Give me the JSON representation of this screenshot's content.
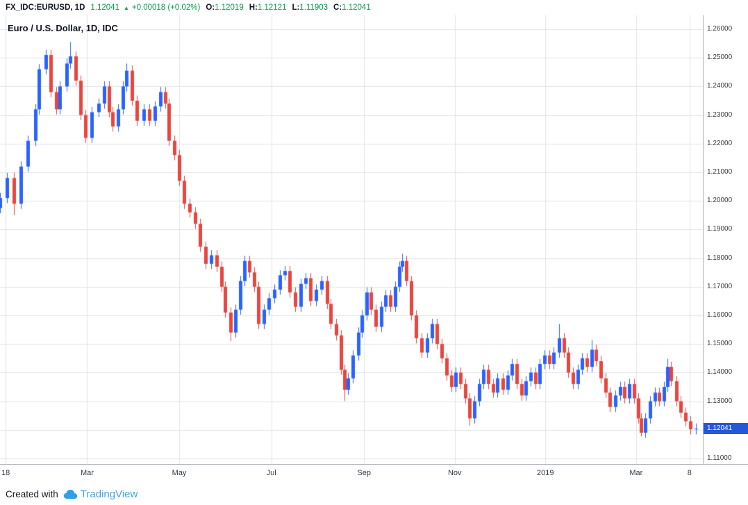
{
  "header": {
    "symbol": "FX_IDC:EURUSD, 1D",
    "last_price": "1.12041",
    "arrow": "▲",
    "change": "+0.00018 (+0.02%)",
    "ohlc": [
      {
        "label": "O:",
        "value": "1.12019"
      },
      {
        "label": "H:",
        "value": "1.12121"
      },
      {
        "label": "L:",
        "value": "1.11903"
      },
      {
        "label": "C:",
        "value": "1.12041"
      }
    ]
  },
  "chart": {
    "last_price_label": "1.12041"
  },
  "footer": {
    "created_with": "Created with",
    "brand": "TradingView"
  },
  "colors": {
    "up": "#2962FF",
    "down": "#E8463F",
    "green": "#089950",
    "badge": "#2457D9",
    "grid": "#E0E3EB",
    "axis_line": "#B2B5BE",
    "axis_text": "#36393F",
    "brand_blue": "#2F9FE8",
    "wordmark": "#4AA0D8"
  },
  "chart_data": {
    "type": "candlestick",
    "title": "Euro / U.S. Dollar, 1D, IDC",
    "symbol": "EURUSD",
    "exchange": "IDC",
    "timeframe": "1D",
    "last_close": 1.12041,
    "first_open": 1.1975,
    "typical_wick": 0.0018,
    "y_axis": {
      "min": 1.11,
      "max": 1.26,
      "tick_step": 0.01,
      "ticks": [
        {
          "value": 1.26,
          "label": "1.26000"
        },
        {
          "value": 1.25,
          "label": "1.25000"
        },
        {
          "value": 1.24,
          "label": "1.24000"
        },
        {
          "value": 1.23,
          "label": "1.23000"
        },
        {
          "value": 1.22,
          "label": "1.22000"
        },
        {
          "value": 1.21,
          "label": "1.21000"
        },
        {
          "value": 1.2,
          "label": "1.20000"
        },
        {
          "value": 1.19,
          "label": "1.19000"
        },
        {
          "value": 1.18,
          "label": "1.18000"
        },
        {
          "value": 1.17,
          "label": "1.17000"
        },
        {
          "value": 1.16,
          "label": "1.16000"
        },
        {
          "value": 1.15,
          "label": "1.15000"
        },
        {
          "value": 1.14,
          "label": "1.14000"
        },
        {
          "value": 1.13,
          "label": "1.13000"
        },
        {
          "value": 1.12,
          "label": "1.12000"
        },
        {
          "value": 1.11,
          "label": "1.11000"
        }
      ]
    },
    "x_axis": {
      "labels": [
        {
          "text": "18",
          "f": 0.008
        },
        {
          "text": "Mar",
          "f": 0.124
        },
        {
          "text": "May",
          "f": 0.255
        },
        {
          "text": "Jul",
          "f": 0.386
        },
        {
          "text": "Sep",
          "f": 0.518
        },
        {
          "text": "Nov",
          "f": 0.647
        },
        {
          "text": "2019",
          "f": 0.776
        },
        {
          "text": "Mar",
          "f": 0.905
        },
        {
          "text": "8",
          "f": 0.981
        }
      ]
    },
    "candles": [
      [
        0.0,
        1.201
      ],
      [
        0.01,
        1.208
      ],
      [
        0.02,
        1.199
      ],
      [
        0.03,
        1.212
      ],
      [
        0.04,
        1.221
      ],
      [
        0.05,
        1.232
      ],
      [
        0.055,
        1.246
      ],
      [
        0.065,
        1.251
      ],
      [
        0.072,
        1.238
      ],
      [
        0.08,
        1.232
      ],
      [
        0.085,
        1.24
      ],
      [
        0.095,
        1.248
      ],
      [
        0.1,
        1.2505
      ],
      [
        0.108,
        1.242
      ],
      [
        0.115,
        1.23
      ],
      [
        0.122,
        1.222
      ],
      [
        0.13,
        1.231
      ],
      [
        0.14,
        1.234
      ],
      [
        0.148,
        1.24
      ],
      [
        0.155,
        1.231
      ],
      [
        0.16,
        1.226
      ],
      [
        0.168,
        1.232
      ],
      [
        0.175,
        1.24
      ],
      [
        0.18,
        1.2455
      ],
      [
        0.188,
        1.235
      ],
      [
        0.195,
        1.228
      ],
      [
        0.205,
        1.232
      ],
      [
        0.212,
        1.228
      ],
      [
        0.22,
        1.233
      ],
      [
        0.228,
        1.238
      ],
      [
        0.235,
        1.234
      ],
      [
        0.24,
        1.221
      ],
      [
        0.248,
        1.216
      ],
      [
        0.255,
        1.207
      ],
      [
        0.262,
        1.199
      ],
      [
        0.27,
        1.196
      ],
      [
        0.278,
        1.192
      ],
      [
        0.285,
        1.184
      ],
      [
        0.292,
        1.178
      ],
      [
        0.3,
        1.181
      ],
      [
        0.308,
        1.177
      ],
      [
        0.315,
        1.17
      ],
      [
        0.32,
        1.161
      ],
      [
        0.328,
        1.154
      ],
      [
        0.335,
        1.162
      ],
      [
        0.342,
        1.172
      ],
      [
        0.348,
        1.179
      ],
      [
        0.355,
        1.175
      ],
      [
        0.362,
        1.17
      ],
      [
        0.368,
        1.157
      ],
      [
        0.375,
        1.162
      ],
      [
        0.382,
        1.166
      ],
      [
        0.39,
        1.169
      ],
      [
        0.398,
        1.174
      ],
      [
        0.405,
        1.1755
      ],
      [
        0.412,
        1.168
      ],
      [
        0.42,
        1.163
      ],
      [
        0.428,
        1.171
      ],
      [
        0.435,
        1.173
      ],
      [
        0.442,
        1.165
      ],
      [
        0.45,
        1.169
      ],
      [
        0.458,
        1.172
      ],
      [
        0.465,
        1.164
      ],
      [
        0.47,
        1.157
      ],
      [
        0.478,
        1.153
      ],
      [
        0.485,
        1.141
      ],
      [
        0.49,
        1.134
      ],
      [
        0.495,
        1.138
      ],
      [
        0.502,
        1.146
      ],
      [
        0.51,
        1.154
      ],
      [
        0.515,
        1.16
      ],
      [
        0.522,
        1.168
      ],
      [
        0.528,
        1.162
      ],
      [
        0.535,
        1.156
      ],
      [
        0.542,
        1.163
      ],
      [
        0.548,
        1.167
      ],
      [
        0.555,
        1.163
      ],
      [
        0.562,
        1.17
      ],
      [
        0.568,
        1.177
      ],
      [
        0.572,
        1.179
      ],
      [
        0.578,
        1.172
      ],
      [
        0.585,
        1.16
      ],
      [
        0.592,
        1.152
      ],
      [
        0.6,
        1.147
      ],
      [
        0.608,
        1.152
      ],
      [
        0.615,
        1.157
      ],
      [
        0.622,
        1.15
      ],
      [
        0.628,
        1.145
      ],
      [
        0.635,
        1.139
      ],
      [
        0.642,
        1.135
      ],
      [
        0.648,
        1.14
      ],
      [
        0.655,
        1.136
      ],
      [
        0.662,
        1.131
      ],
      [
        0.668,
        1.124
      ],
      [
        0.675,
        1.13
      ],
      [
        0.682,
        1.136
      ],
      [
        0.688,
        1.141
      ],
      [
        0.695,
        1.136
      ],
      [
        0.702,
        1.133
      ],
      [
        0.708,
        1.138
      ],
      [
        0.715,
        1.134
      ],
      [
        0.722,
        1.139
      ],
      [
        0.728,
        1.143
      ],
      [
        0.735,
        1.136
      ],
      [
        0.742,
        1.132
      ],
      [
        0.748,
        1.137
      ],
      [
        0.755,
        1.14
      ],
      [
        0.762,
        1.136
      ],
      [
        0.768,
        1.143
      ],
      [
        0.775,
        1.146
      ],
      [
        0.782,
        1.143
      ],
      [
        0.788,
        1.147
      ],
      [
        0.795,
        1.152
      ],
      [
        0.802,
        1.147
      ],
      [
        0.808,
        1.14
      ],
      [
        0.815,
        1.136
      ],
      [
        0.822,
        1.141
      ],
      [
        0.828,
        1.145
      ],
      [
        0.835,
        1.142
      ],
      [
        0.842,
        1.148
      ],
      [
        0.848,
        1.144
      ],
      [
        0.855,
        1.138
      ],
      [
        0.862,
        1.133
      ],
      [
        0.868,
        1.128
      ],
      [
        0.875,
        1.132
      ],
      [
        0.882,
        1.135
      ],
      [
        0.888,
        1.131
      ],
      [
        0.895,
        1.136
      ],
      [
        0.902,
        1.131
      ],
      [
        0.908,
        1.124
      ],
      [
        0.912,
        1.119
      ],
      [
        0.918,
        1.124
      ],
      [
        0.925,
        1.13
      ],
      [
        0.932,
        1.133
      ],
      [
        0.938,
        1.13
      ],
      [
        0.945,
        1.135
      ],
      [
        0.95,
        1.142
      ],
      [
        0.955,
        1.137
      ],
      [
        0.962,
        1.13
      ],
      [
        0.968,
        1.126
      ],
      [
        0.975,
        1.123
      ],
      [
        0.982,
        1.1202
      ],
      [
        0.99,
        1.12041
      ]
    ],
    "wick_overrides": {
      "2": {
        "l": 1.195
      },
      "12": {
        "h": 1.2555
      },
      "23": {
        "h": 1.248
      },
      "43": {
        "l": 1.151
      },
      "66": {
        "l": 1.1301
      },
      "79": {
        "h": 1.1815
      },
      "93": {
        "l": 1.1215
      },
      "112": {
        "h": 1.157
      },
      "119": {
        "h": 1.1514
      },
      "130": {
        "l": 1.1177
      },
      "136": {
        "h": 1.1448
      }
    },
    "legend_position": "top-left",
    "grid": true
  }
}
